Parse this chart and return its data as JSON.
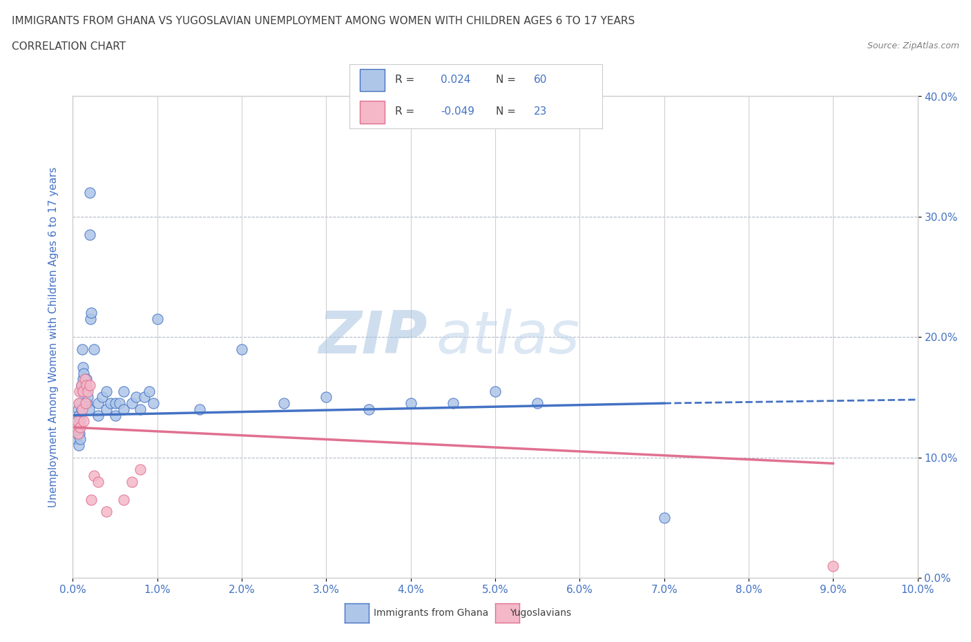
{
  "title_line1": "IMMIGRANTS FROM GHANA VS YUGOSLAVIAN UNEMPLOYMENT AMONG WOMEN WITH CHILDREN AGES 6 TO 17 YEARS",
  "title_line2": "CORRELATION CHART",
  "source": "Source: ZipAtlas.com",
  "ylabel_label": "Unemployment Among Women with Children Ages 6 to 17 years",
  "xlim": [
    0.0,
    0.1
  ],
  "ylim": [
    0.0,
    0.4
  ],
  "ghana_color": "#aec6e8",
  "ghana_edge_color": "#4472c4",
  "yugo_color": "#f4b8c8",
  "yugo_edge_color": "#e07090",
  "ghana_r": 0.024,
  "ghana_n": 60,
  "yugo_r": -0.049,
  "yugo_n": 23,
  "watermark_zip": "ZIP",
  "watermark_atlas": "atlas",
  "grid_color": "#d0d0d0",
  "grid_dash_color": "#b0b8c8",
  "text_color": "#4472c4",
  "title_color": "#404040",
  "source_color": "#808080",
  "ghana_scatter_x": [
    0.0003,
    0.0004,
    0.0005,
    0.0005,
    0.0006,
    0.0007,
    0.0007,
    0.0008,
    0.0008,
    0.0009,
    0.0009,
    0.001,
    0.001,
    0.0011,
    0.0011,
    0.0012,
    0.0012,
    0.0013,
    0.0013,
    0.0014,
    0.0015,
    0.0015,
    0.0016,
    0.0016,
    0.0017,
    0.0018,
    0.0019,
    0.002,
    0.002,
    0.0021,
    0.0022,
    0.0025,
    0.003,
    0.003,
    0.0035,
    0.004,
    0.004,
    0.0045,
    0.005,
    0.005,
    0.0055,
    0.006,
    0.006,
    0.007,
    0.0075,
    0.008,
    0.0085,
    0.009,
    0.0095,
    0.01,
    0.015,
    0.02,
    0.025,
    0.03,
    0.035,
    0.04,
    0.045,
    0.05,
    0.055,
    0.07
  ],
  "ghana_scatter_y": [
    0.125,
    0.115,
    0.13,
    0.12,
    0.14,
    0.11,
    0.135,
    0.145,
    0.12,
    0.13,
    0.115,
    0.16,
    0.14,
    0.19,
    0.155,
    0.165,
    0.175,
    0.155,
    0.17,
    0.16,
    0.145,
    0.16,
    0.155,
    0.165,
    0.145,
    0.15,
    0.14,
    0.32,
    0.285,
    0.215,
    0.22,
    0.19,
    0.135,
    0.145,
    0.15,
    0.14,
    0.155,
    0.145,
    0.145,
    0.135,
    0.145,
    0.155,
    0.14,
    0.145,
    0.15,
    0.14,
    0.15,
    0.155,
    0.145,
    0.215,
    0.14,
    0.19,
    0.145,
    0.15,
    0.14,
    0.145,
    0.145,
    0.155,
    0.145,
    0.05
  ],
  "yugo_scatter_x": [
    0.0003,
    0.0005,
    0.0006,
    0.0007,
    0.0008,
    0.0009,
    0.001,
    0.0011,
    0.0012,
    0.0013,
    0.0014,
    0.0015,
    0.0016,
    0.0018,
    0.002,
    0.0022,
    0.0025,
    0.003,
    0.004,
    0.006,
    0.007,
    0.008,
    0.09
  ],
  "yugo_scatter_y": [
    0.125,
    0.13,
    0.12,
    0.145,
    0.155,
    0.125,
    0.16,
    0.14,
    0.155,
    0.13,
    0.165,
    0.145,
    0.16,
    0.155,
    0.16,
    0.065,
    0.085,
    0.08,
    0.055,
    0.065,
    0.08,
    0.09,
    0.01
  ],
  "ghana_trend_x": [
    0.0,
    0.07,
    0.1
  ],
  "ghana_trend_y": [
    0.135,
    0.145,
    0.148
  ],
  "ghana_trend_solid_end": 0.07,
  "yugo_trend_x": [
    0.0,
    0.09
  ],
  "yugo_trend_y": [
    0.125,
    0.095
  ],
  "background_color": "#ffffff"
}
